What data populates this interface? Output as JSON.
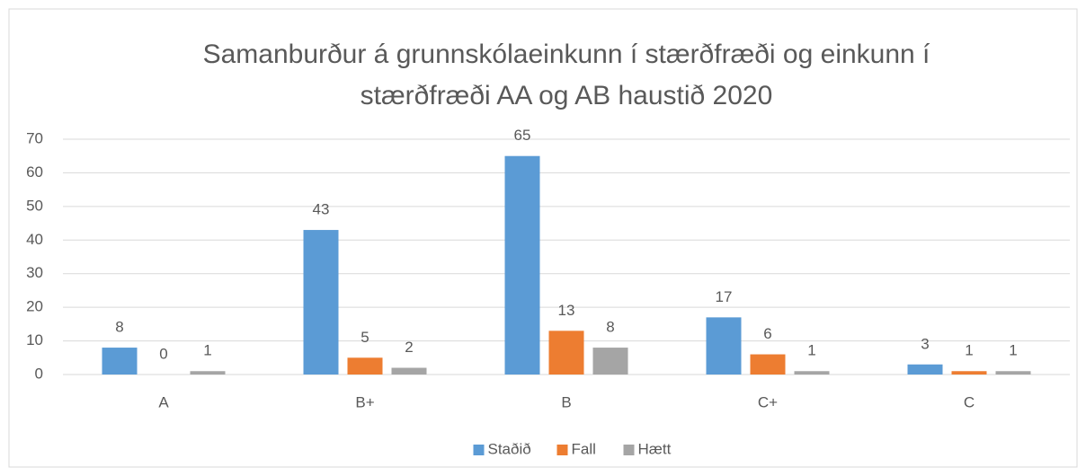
{
  "chart_data": {
    "type": "bar",
    "title": [
      "Samanburður á grunnskólaeinkunn í stærðfræði og einkunn í",
      "stærðfræði AA og AB haustið 2020"
    ],
    "categories": [
      "A",
      "B+",
      "B",
      "C+",
      "C"
    ],
    "series": [
      {
        "name": "Staðið",
        "color": "#5b9bd5",
        "values": [
          8,
          43,
          65,
          17,
          3
        ]
      },
      {
        "name": "Fall",
        "color": "#ed7d31",
        "values": [
          0,
          5,
          13,
          6,
          1
        ]
      },
      {
        "name": "Hætt",
        "color": "#a5a5a5",
        "values": [
          1,
          2,
          8,
          1,
          1
        ]
      }
    ],
    "ylim": [
      0,
      70
    ],
    "yticks": [
      0,
      10,
      20,
      30,
      40,
      50,
      60,
      70
    ],
    "grid": true,
    "legend": "bottom"
  }
}
